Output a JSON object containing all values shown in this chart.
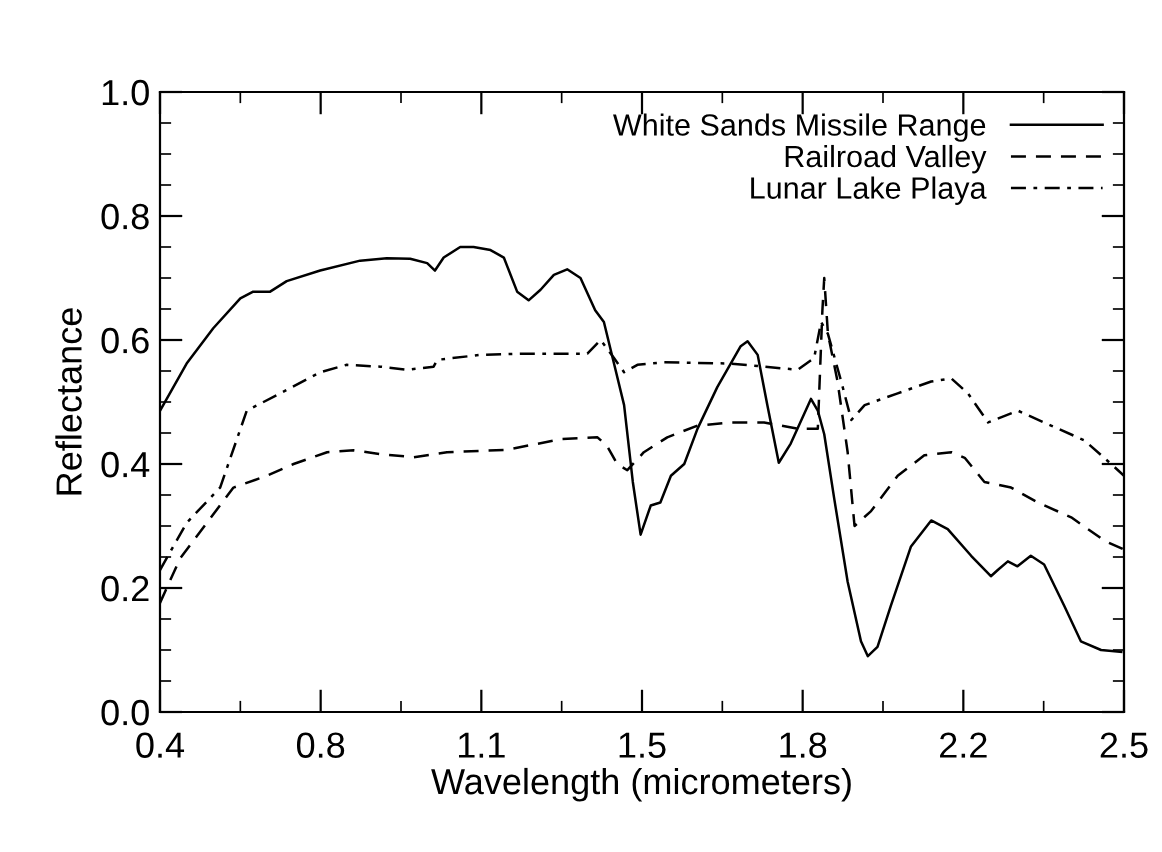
{
  "chart_data": {
    "type": "line",
    "xlabel": "Wavelength (micrometers)",
    "ylabel": "Reflectance",
    "xlim": [
      0.4,
      2.5
    ],
    "ylim": [
      0,
      1.0
    ],
    "xticks": [
      0.4,
      {
        "value": 0.75,
        "label": "0.8"
      },
      1.1,
      {
        "value": 1.45,
        "label": "1.5"
      },
      1.8,
      {
        "value": 2.15,
        "label": "2.2"
      },
      2.5
    ],
    "yticks": [
      {
        "value": 0,
        "label": "0.0"
      },
      0.2,
      0.4,
      0.6,
      0.8,
      {
        "value": 1.0,
        "label": "1.0"
      }
    ],
    "grid": false,
    "legend": "top right",
    "marker": "none",
    "series": [
      {
        "name": "White Sands Missile Range",
        "color": "#000000",
        "line_style": "solid",
        "x": [
          0.4,
          0.458,
          0.516,
          0.575,
          0.603,
          0.64,
          0.676,
          0.749,
          0.836,
          0.894,
          0.945,
          0.982,
          0.999,
          1.018,
          1.054,
          1.083,
          1.12,
          1.149,
          1.178,
          1.203,
          1.229,
          1.258,
          1.287,
          1.316,
          1.348,
          1.367,
          1.389,
          1.411,
          1.43,
          1.447,
          1.469,
          1.49,
          1.513,
          1.542,
          1.571,
          1.614,
          1.665,
          1.68,
          1.702,
          1.723,
          1.748,
          1.774,
          1.818,
          1.833,
          1.847,
          1.869,
          1.898,
          1.927,
          1.942,
          1.963,
          1.992,
          2.036,
          2.08,
          2.116,
          2.167,
          2.21,
          2.225,
          2.247,
          2.268,
          2.297,
          2.326,
          2.37,
          2.406,
          2.45,
          2.494
        ],
        "values": [
          0.486,
          0.562,
          0.619,
          0.667,
          0.678,
          0.678,
          0.695,
          0.712,
          0.728,
          0.732,
          0.731,
          0.724,
          0.712,
          0.733,
          0.75,
          0.75,
          0.745,
          0.733,
          0.678,
          0.664,
          0.681,
          0.705,
          0.714,
          0.7,
          0.648,
          0.629,
          0.562,
          0.495,
          0.371,
          0.286,
          0.333,
          0.338,
          0.381,
          0.4,
          0.457,
          0.524,
          0.59,
          0.598,
          0.576,
          0.495,
          0.402,
          0.433,
          0.505,
          0.486,
          0.448,
          0.343,
          0.21,
          0.114,
          0.09,
          0.105,
          0.171,
          0.267,
          0.309,
          0.295,
          0.252,
          0.219,
          0.229,
          0.243,
          0.235,
          0.252,
          0.238,
          0.171,
          0.114,
          0.1,
          0.097
        ]
      },
      {
        "name": "Railroad Valley",
        "color": "#000000",
        "line_style": "dashed",
        "x": [
          0.4,
          0.444,
          0.502,
          0.56,
          0.633,
          0.691,
          0.764,
          0.822,
          0.88,
          0.953,
          1.025,
          1.156,
          1.273,
          1.353,
          1.374,
          1.396,
          1.418,
          1.454,
          1.505,
          1.571,
          1.644,
          1.716,
          1.789,
          1.833,
          1.843,
          1.847,
          1.855,
          1.876,
          1.898,
          1.913,
          1.949,
          2.007,
          2.065,
          2.124,
          2.153,
          2.196,
          2.254,
          2.312,
          2.385,
          2.458,
          2.5
        ],
        "values": [
          0.176,
          0.248,
          0.305,
          0.362,
          0.381,
          0.4,
          0.419,
          0.422,
          0.416,
          0.411,
          0.419,
          0.423,
          0.44,
          0.443,
          0.429,
          0.4,
          0.39,
          0.419,
          0.443,
          0.462,
          0.467,
          0.467,
          0.457,
          0.457,
          0.648,
          0.7,
          0.61,
          0.533,
          0.419,
          0.3,
          0.324,
          0.381,
          0.414,
          0.419,
          0.41,
          0.371,
          0.362,
          0.338,
          0.314,
          0.276,
          0.262
        ]
      },
      {
        "name": "Lunar Lake Playa",
        "color": "#000000",
        "line_style": "dashdot",
        "x": [
          0.4,
          0.458,
          0.531,
          0.589,
          0.662,
          0.749,
          0.807,
          0.88,
          0.938,
          0.996,
          1.004,
          1.098,
          1.185,
          1.331,
          1.36,
          1.389,
          1.411,
          1.44,
          1.498,
          1.644,
          1.789,
          1.825,
          1.84,
          1.855,
          1.884,
          1.906,
          1.935,
          2.007,
          2.08,
          2.124,
          2.16,
          2.204,
          2.269,
          2.341,
          2.414,
          2.472,
          2.5
        ],
        "values": [
          0.229,
          0.305,
          0.362,
          0.486,
          0.514,
          0.548,
          0.56,
          0.557,
          0.552,
          0.557,
          0.568,
          0.576,
          0.578,
          0.578,
          0.6,
          0.571,
          0.548,
          0.56,
          0.564,
          0.562,
          0.552,
          0.571,
          0.629,
          0.61,
          0.533,
          0.471,
          0.495,
          0.514,
          0.533,
          0.538,
          0.514,
          0.467,
          0.486,
          0.462,
          0.438,
          0.4,
          0.381
        ]
      }
    ]
  }
}
